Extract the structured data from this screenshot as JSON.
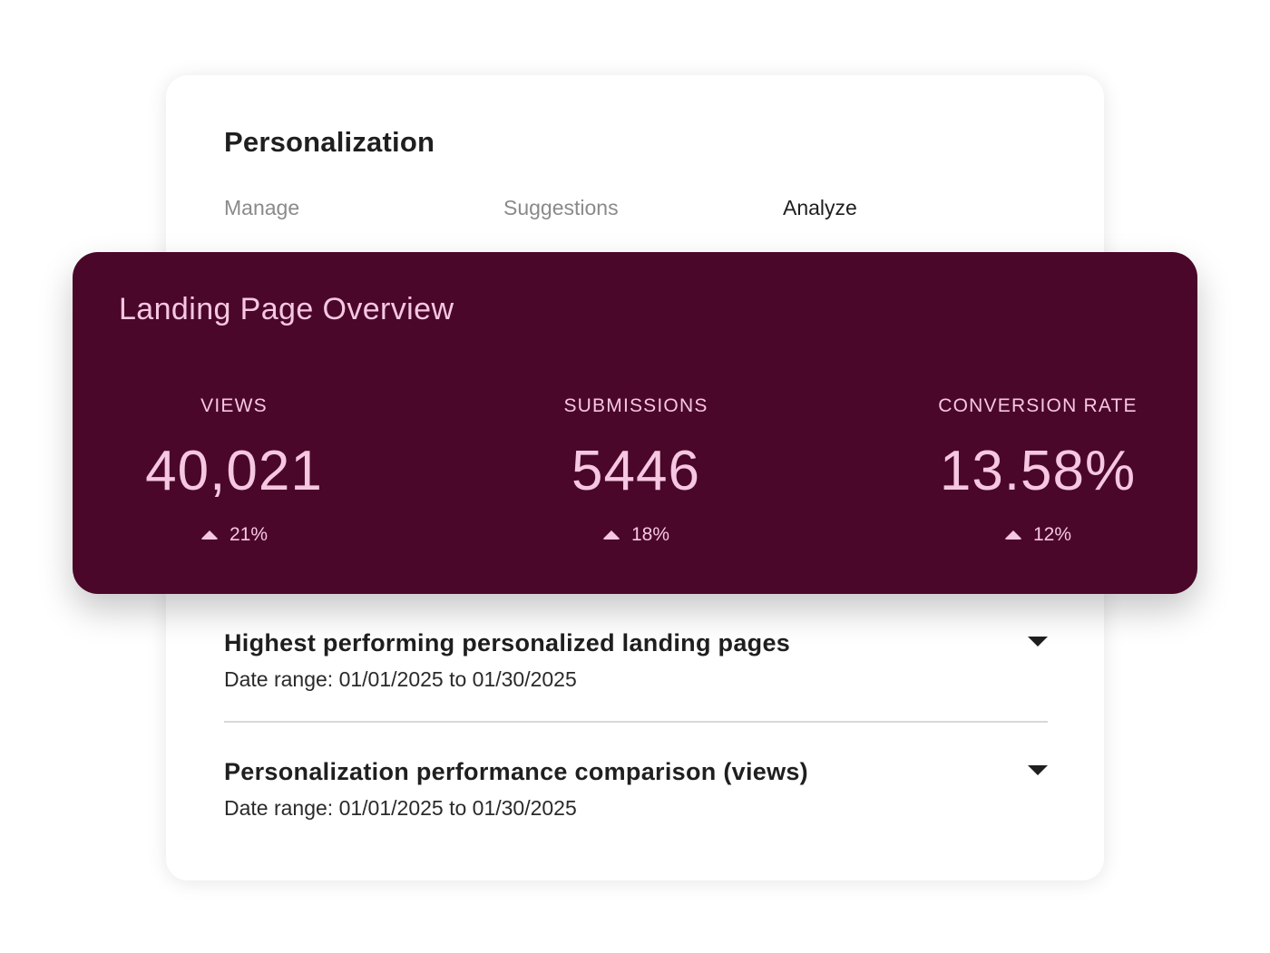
{
  "page": {
    "title": "Personalization"
  },
  "tabs": [
    {
      "label": "Manage",
      "active": false
    },
    {
      "label": "Suggestions",
      "active": false
    },
    {
      "label": "Analyze",
      "active": true
    }
  ],
  "overview": {
    "title": "Landing Page Overview",
    "background_color": "#4a0729",
    "text_color": "#f6c7e0",
    "stats": [
      {
        "label": "VIEWS",
        "value": "40,021",
        "change": "21%",
        "trend_icon": "triangle-up-icon"
      },
      {
        "label": "SUBMISSIONS",
        "value": "5446",
        "change": "18%",
        "trend_icon": "triangle-up-icon"
      },
      {
        "label": "CONVERSION RATE",
        "value": "13.58%",
        "change": "12%",
        "trend_icon": "triangle-up-icon"
      }
    ]
  },
  "sections": [
    {
      "title": "Highest performing personalized landing pages",
      "subtitle": "Date range: 01/01/2025 to 01/30/2025",
      "toggle_icon": "caret-down-icon"
    },
    {
      "title": "Personalization performance comparison (views)",
      "subtitle": "Date range: 01/01/2025 to 01/30/2025",
      "toggle_icon": "caret-down-icon"
    }
  ]
}
